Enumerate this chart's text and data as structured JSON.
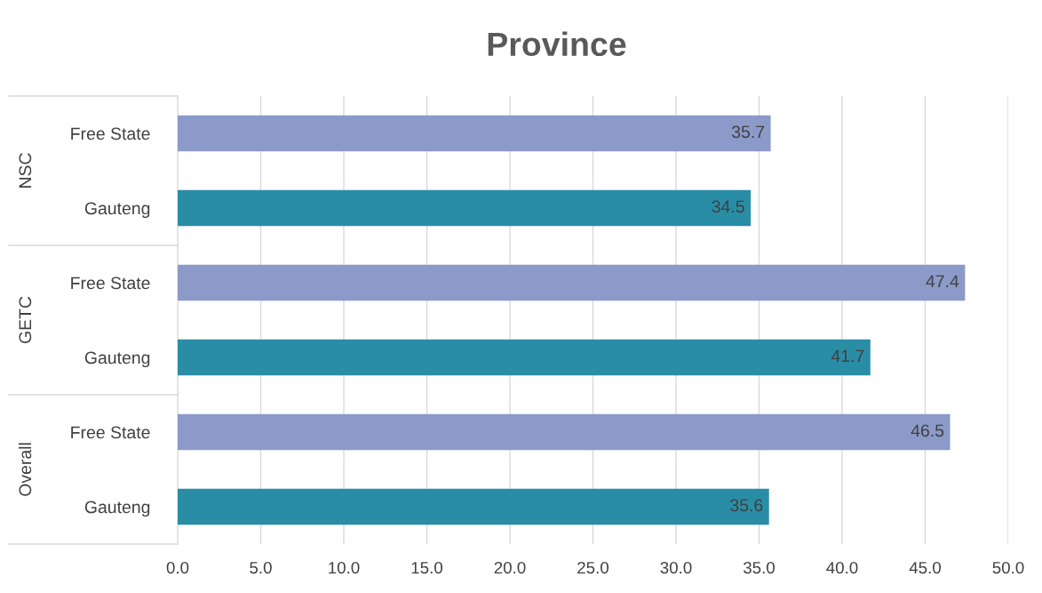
{
  "chart_data": {
    "type": "bar",
    "orientation": "horizontal",
    "title": "Province",
    "categories": [
      "Free State",
      "Gauteng",
      "Free State",
      "Gauteng",
      "Free State",
      "Gauteng"
    ],
    "values": [
      35.7,
      34.5,
      47.4,
      41.7,
      46.5,
      35.6
    ],
    "colors": [
      "#8b9ac8",
      "#2a8da6",
      "#8b9ac8",
      "#2a8da6",
      "#8b9ac8",
      "#2a8da6"
    ],
    "annotations": [
      "NSC",
      "GETC",
      "Overall"
    ],
    "data_labels": true,
    "xlim": [
      0,
      50
    ],
    "xticks": [
      {
        "value": 0,
        "label": "0.0"
      },
      {
        "value": 5,
        "label": "5.0"
      },
      {
        "value": 10,
        "label": "10.0"
      },
      {
        "value": 15,
        "label": "15.0"
      },
      {
        "value": 20,
        "label": "20.0"
      },
      {
        "value": 25,
        "label": "25.0"
      },
      {
        "value": 30,
        "label": "30.0"
      },
      {
        "value": 35,
        "label": "35.0"
      },
      {
        "value": 40,
        "label": "40.0"
      },
      {
        "value": 45,
        "label": "45.0"
      },
      {
        "value": 50,
        "label": "50.0"
      }
    ],
    "grid": "x"
  }
}
